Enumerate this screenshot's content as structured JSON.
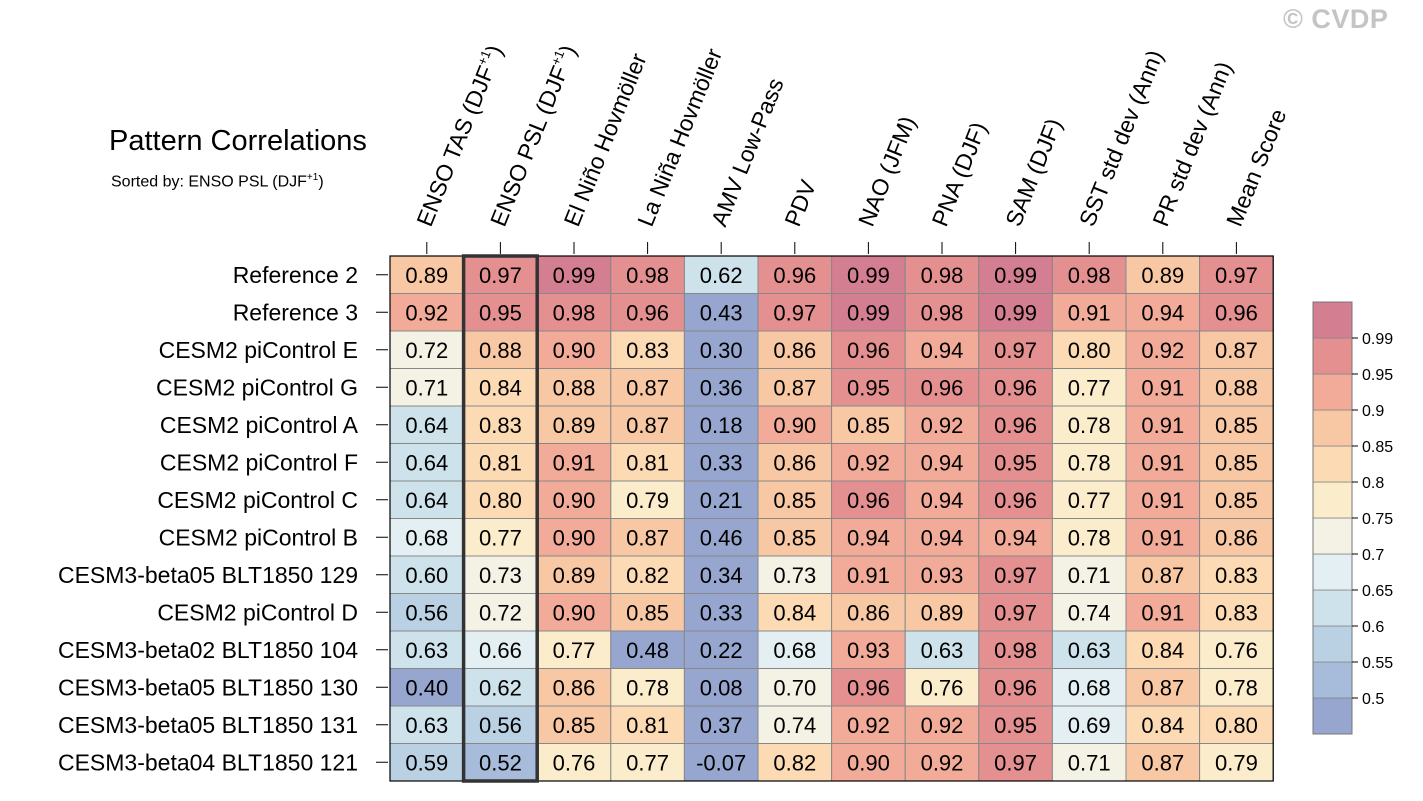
{
  "watermark": "© CVDP",
  "chart_data": {
    "type": "heatmap",
    "title": "Pattern Correlations",
    "subtitle": "Sorted by: ENSO PSL (DJF+1)",
    "columns": [
      {
        "label": "ENSO TAS (DJF",
        "sup": "+1",
        "suffix": ")"
      },
      {
        "label": "ENSO PSL (DJF",
        "sup": "+1",
        "suffix": ")"
      },
      {
        "label": "El Niño Hovmöller",
        "sup": "",
        "suffix": ""
      },
      {
        "label": "La Niña Hovmöller",
        "sup": "",
        "suffix": ""
      },
      {
        "label": "AMV Low-Pass",
        "sup": "",
        "suffix": ""
      },
      {
        "label": "PDV",
        "sup": "",
        "suffix": ""
      },
      {
        "label": "NAO (JFM)",
        "sup": "",
        "suffix": ""
      },
      {
        "label": "PNA (DJF)",
        "sup": "",
        "suffix": ""
      },
      {
        "label": "SAM (DJF)",
        "sup": "",
        "suffix": ""
      },
      {
        "label": "SST std dev (Ann)",
        "sup": "",
        "suffix": ""
      },
      {
        "label": "PR std dev (Ann)",
        "sup": "",
        "suffix": ""
      },
      {
        "label": "Mean Score",
        "sup": "",
        "suffix": ""
      }
    ],
    "highlight_column": 1,
    "rows": [
      {
        "label": "Reference 2",
        "values": [
          0.89,
          0.97,
          0.99,
          0.98,
          0.62,
          0.96,
          0.99,
          0.98,
          0.99,
          0.98,
          0.89,
          0.97
        ],
        "display": [
          "0.89",
          "0.97",
          "0.99",
          "0.98",
          "0.62",
          "0.96",
          "0.99",
          "0.98",
          "0.99",
          "0.98",
          "0.89",
          "0.97"
        ]
      },
      {
        "label": "Reference 3",
        "values": [
          0.92,
          0.95,
          0.98,
          0.96,
          0.43,
          0.97,
          0.99,
          0.98,
          0.99,
          0.91,
          0.94,
          0.96
        ],
        "display": [
          "0.92",
          "0.95",
          "0.98",
          "0.96",
          "0.43",
          "0.97",
          "0.99",
          "0.98",
          "0.99",
          "0.91",
          "0.94",
          "0.96"
        ]
      },
      {
        "label": "CESM2 piControl E",
        "values": [
          0.72,
          0.88,
          0.9,
          0.83,
          0.3,
          0.86,
          0.96,
          0.94,
          0.97,
          0.8,
          0.92,
          0.87
        ],
        "display": [
          "0.72",
          "0.88",
          "0.90",
          "0.83",
          "0.30",
          "0.86",
          "0.96",
          "0.94",
          "0.97",
          "0.80",
          "0.92",
          "0.87"
        ]
      },
      {
        "label": "CESM2 piControl G",
        "values": [
          0.71,
          0.84,
          0.88,
          0.87,
          0.36,
          0.87,
          0.95,
          0.96,
          0.96,
          0.77,
          0.91,
          0.88
        ],
        "display": [
          "0.71",
          "0.84",
          "0.88",
          "0.87",
          "0.36",
          "0.87",
          "0.95",
          "0.96",
          "0.96",
          "0.77",
          "0.91",
          "0.88"
        ]
      },
      {
        "label": "CESM2 piControl A",
        "values": [
          0.64,
          0.83,
          0.89,
          0.87,
          0.18,
          0.9,
          0.85,
          0.92,
          0.96,
          0.78,
          0.91,
          0.85
        ],
        "display": [
          "0.64",
          "0.83",
          "0.89",
          "0.87",
          "0.18",
          "0.90",
          "0.85",
          "0.92",
          "0.96",
          "0.78",
          "0.91",
          "0.85"
        ]
      },
      {
        "label": "CESM2 piControl F",
        "values": [
          0.64,
          0.81,
          0.91,
          0.81,
          0.33,
          0.86,
          0.92,
          0.94,
          0.95,
          0.78,
          0.91,
          0.85
        ],
        "display": [
          "0.64",
          "0.81",
          "0.91",
          "0.81",
          "0.33",
          "0.86",
          "0.92",
          "0.94",
          "0.95",
          "0.78",
          "0.91",
          "0.85"
        ]
      },
      {
        "label": "CESM2 piControl C",
        "values": [
          0.64,
          0.8,
          0.9,
          0.79,
          0.21,
          0.85,
          0.96,
          0.94,
          0.96,
          0.77,
          0.91,
          0.85
        ],
        "display": [
          "0.64",
          "0.80",
          "0.90",
          "0.79",
          "0.21",
          "0.85",
          "0.96",
          "0.94",
          "0.96",
          "0.77",
          "0.91",
          "0.85"
        ]
      },
      {
        "label": "CESM2 piControl B",
        "values": [
          0.68,
          0.77,
          0.9,
          0.87,
          0.46,
          0.85,
          0.94,
          0.94,
          0.94,
          0.78,
          0.91,
          0.86
        ],
        "display": [
          "0.68",
          "0.77",
          "0.90",
          "0.87",
          "0.46",
          "0.85",
          "0.94",
          "0.94",
          "0.94",
          "0.78",
          "0.91",
          "0.86"
        ]
      },
      {
        "label": "CESM3-beta05 BLT1850 129",
        "values": [
          0.6,
          0.73,
          0.89,
          0.82,
          0.34,
          0.73,
          0.91,
          0.93,
          0.97,
          0.71,
          0.87,
          0.83
        ],
        "display": [
          "0.60",
          "0.73",
          "0.89",
          "0.82",
          "0.34",
          "0.73",
          "0.91",
          "0.93",
          "0.97",
          "0.71",
          "0.87",
          "0.83"
        ]
      },
      {
        "label": "CESM2 piControl D",
        "values": [
          0.56,
          0.72,
          0.9,
          0.85,
          0.33,
          0.84,
          0.86,
          0.89,
          0.97,
          0.74,
          0.91,
          0.83
        ],
        "display": [
          "0.56",
          "0.72",
          "0.90",
          "0.85",
          "0.33",
          "0.84",
          "0.86",
          "0.89",
          "0.97",
          "0.74",
          "0.91",
          "0.83"
        ]
      },
      {
        "label": "CESM3-beta02 BLT1850 104",
        "values": [
          0.63,
          0.66,
          0.77,
          0.48,
          0.22,
          0.68,
          0.93,
          0.63,
          0.98,
          0.63,
          0.84,
          0.76
        ],
        "display": [
          "0.63",
          "0.66",
          "0.77",
          "0.48",
          "0.22",
          "0.68",
          "0.93",
          "0.63",
          "0.98",
          "0.63",
          "0.84",
          "0.76"
        ]
      },
      {
        "label": "CESM3-beta05 BLT1850 130",
        "values": [
          0.4,
          0.62,
          0.86,
          0.78,
          0.08,
          0.7,
          0.96,
          0.76,
          0.96,
          0.68,
          0.87,
          0.78
        ],
        "display": [
          "0.40",
          "0.62",
          "0.86",
          "0.78",
          "0.08",
          "0.70",
          "0.96",
          "0.76",
          "0.96",
          "0.68",
          "0.87",
          "0.78"
        ]
      },
      {
        "label": "CESM3-beta05 BLT1850 131",
        "values": [
          0.63,
          0.56,
          0.85,
          0.81,
          0.37,
          0.74,
          0.92,
          0.92,
          0.95,
          0.69,
          0.84,
          0.8
        ],
        "display": [
          "0.63",
          "0.56",
          "0.85",
          "0.81",
          "0.37",
          "0.74",
          "0.92",
          "0.92",
          "0.95",
          "0.69",
          "0.84",
          "0.80"
        ]
      },
      {
        "label": "CESM3-beta04 BLT1850 121",
        "values": [
          0.59,
          0.52,
          0.76,
          0.77,
          -0.07,
          0.82,
          0.9,
          0.92,
          0.97,
          0.71,
          0.87,
          0.79
        ],
        "display": [
          "0.59",
          "0.52",
          "0.76",
          "0.77",
          "-0.07",
          "0.82",
          "0.90",
          "0.92",
          "0.97",
          "0.71",
          "0.87",
          "0.79"
        ]
      }
    ],
    "colorbar": {
      "levels": [
        0.5,
        0.55,
        0.6,
        0.65,
        0.7,
        0.75,
        0.8,
        0.85,
        0.9,
        0.95,
        0.99
      ],
      "level_labels": [
        "0.5",
        "0.55",
        "0.6",
        "0.65",
        "0.7",
        "0.75",
        "0.8",
        "0.85",
        "0.9",
        "0.95",
        "0.99"
      ],
      "colors": [
        "#96a6cf",
        "#a7bcdb",
        "#bad1e4",
        "#cde2eb",
        "#e3eff2",
        "#f3f2e5",
        "#fbeccb",
        "#fbdab4",
        "#f8c8a5",
        "#f2ab98",
        "#e59090",
        "#d47e92"
      ],
      "border": "#888888",
      "highlight_border": "#333333"
    }
  }
}
